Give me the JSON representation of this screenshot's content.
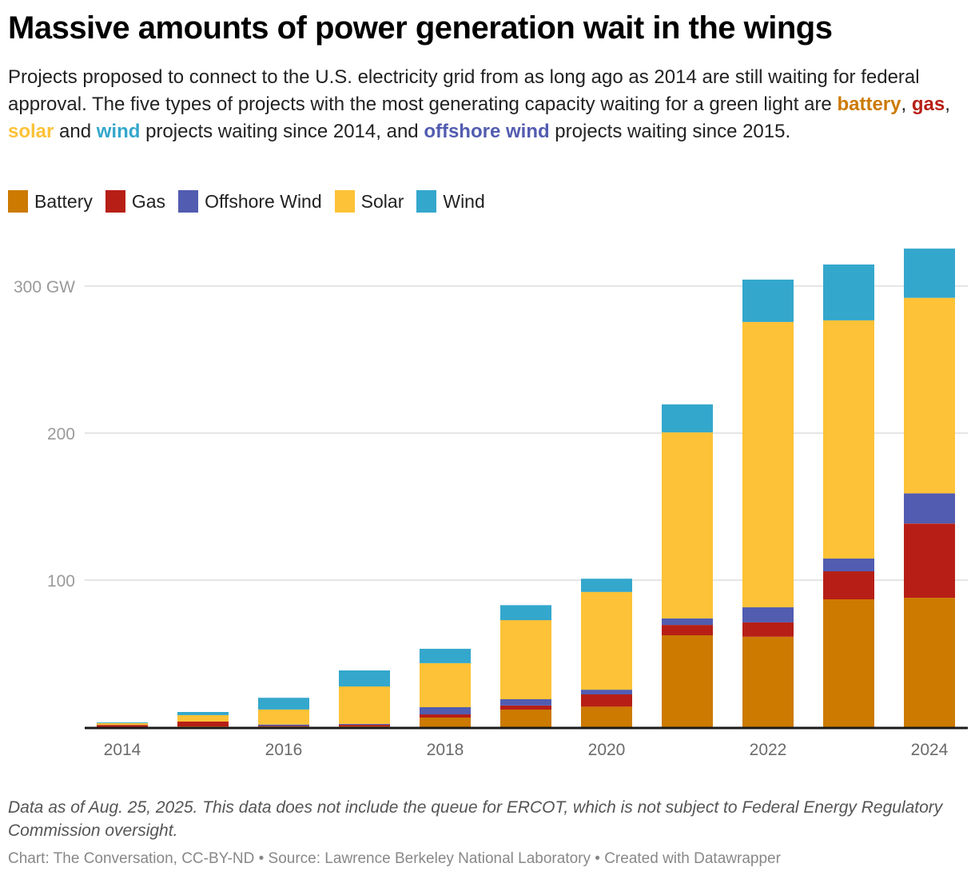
{
  "title": "Massive amounts of power generation wait in the wings",
  "description": {
    "part1": "Projects proposed to connect to the U.S. electricity grid from as long ago as 2014 are still waiting for federal approval. The five types of projects with the most generating capacity waiting for a green light are ",
    "battery": "battery",
    "sep1": ", ",
    "gas": "gas",
    "sep2": ", ",
    "solar": "solar",
    "part2": " and ",
    "wind": "wind",
    "part3": " projects waiting since 2014, and ",
    "offshore": "offshore wind",
    "part4": " projects waiting since 2015."
  },
  "colors": {
    "battery": "#cc7a00",
    "gas": "#b71f16",
    "offshore_wind": "#525cb0",
    "solar": "#fdc237",
    "wind": "#34a7cc"
  },
  "legend": [
    {
      "label": "Battery",
      "key": "battery"
    },
    {
      "label": "Gas",
      "key": "gas"
    },
    {
      "label": "Offshore Wind",
      "key": "offshore_wind"
    },
    {
      "label": "Solar",
      "key": "solar"
    },
    {
      "label": "Wind",
      "key": "wind"
    }
  ],
  "chart_data": {
    "type": "bar",
    "stacked": true,
    "title": "Massive amounts of power generation wait in the wings",
    "xlabel": "",
    "ylabel": "",
    "unit": "GW",
    "categories": [
      "2014",
      "2015",
      "2016",
      "2017",
      "2018",
      "2019",
      "2020",
      "2021",
      "2022",
      "2023",
      "2024"
    ],
    "x_tick_labels": [
      "2014",
      "2016",
      "2018",
      "2020",
      "2022",
      "2024"
    ],
    "y_ticks": [
      100,
      200,
      300
    ],
    "y_tick_labels": [
      "100",
      "200",
      "300 GW"
    ],
    "ylim": [
      0,
      330
    ],
    "grid": true,
    "legend_position": "top-left",
    "series": [
      {
        "name": "Battery",
        "key": "battery",
        "values": [
          0.2,
          0.5,
          0.5,
          0.5,
          6.5,
          12,
          14,
          62.5,
          61.5,
          87,
          88
        ]
      },
      {
        "name": "Gas",
        "key": "gas",
        "values": [
          1.3,
          3.3,
          0.3,
          1.1,
          2.2,
          2.7,
          8.3,
          7,
          9.8,
          19,
          50.5
        ]
      },
      {
        "name": "Offshore Wind",
        "key": "offshore_wind",
        "values": [
          0,
          0,
          1.0,
          0.6,
          4.9,
          4.3,
          3.2,
          4.5,
          10.3,
          8.7,
          20.5
        ]
      },
      {
        "name": "Solar",
        "key": "solar",
        "values": [
          1.2,
          4.4,
          10.2,
          25.5,
          29.9,
          53.8,
          66.5,
          126.5,
          194,
          162,
          133
        ]
      },
      {
        "name": "Wind",
        "key": "wind",
        "values": [
          0.5,
          2.1,
          8,
          10.9,
          9.8,
          10.2,
          9,
          19,
          28.8,
          38,
          33.5
        ]
      }
    ]
  },
  "note": "Data as of Aug. 25, 2025. This data does not include the queue for ERCOT, which is not subject to Federal Energy Regulatory Commission oversight.",
  "credit": "Chart: The Conversation, CC-BY-ND • Source: Lawrence Berkeley National Laboratory • Created with Datawrapper"
}
